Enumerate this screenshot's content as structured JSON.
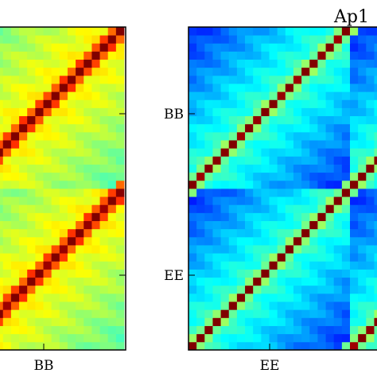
{
  "chart_data": [
    {
      "type": "heatmap",
      "title": "",
      "xlabel": "",
      "ylabel": "",
      "x_tick_labels": [
        "BB"
      ],
      "y_tick_labels": [],
      "block_labels": [
        "BB",
        "EE"
      ],
      "colormap": "jet",
      "diagonal_value": 1.0,
      "offdiagonal_range": [
        0.45,
        0.65
      ],
      "offdiagonal_stripe_value": 0.8,
      "grid": false
    },
    {
      "type": "heatmap",
      "title": "Ap1",
      "xlabel": "",
      "ylabel": "",
      "x_tick_labels": [
        "EE"
      ],
      "y_tick_labels": [
        "BB",
        "EE"
      ],
      "block_labels": [
        "BB",
        "EE"
      ],
      "colormap": "jet",
      "diagonal_value": 1.0,
      "offdiagonal_range": [
        0.15,
        0.45
      ],
      "offdiagonal_stripe_value": 0.5,
      "grid": false
    }
  ],
  "colors": {
    "frame": "#000000",
    "background": "#ffffff"
  }
}
